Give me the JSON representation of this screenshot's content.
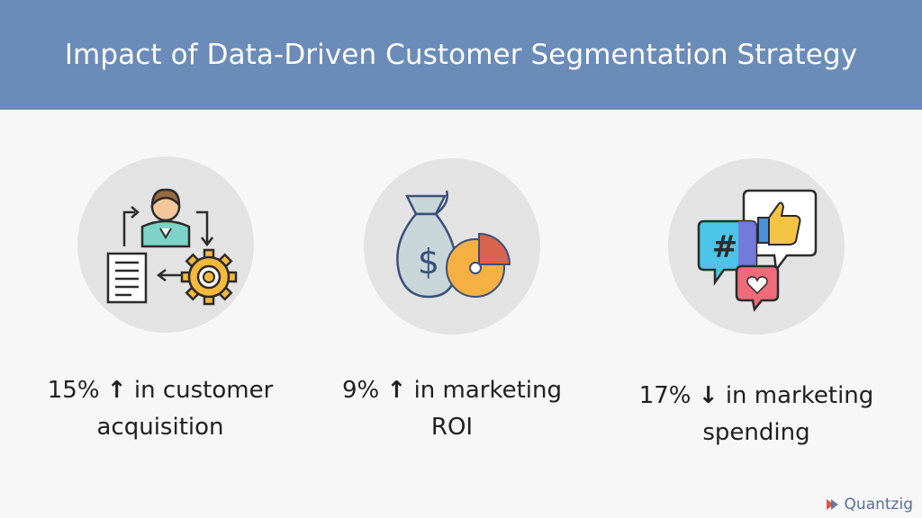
{
  "header": {
    "title": "Impact of Data-Driven Customer Segmentation Strategy"
  },
  "colors": {
    "header_bg": "#6b8cb9",
    "circle_bg": "#e3e3e3",
    "text": "#1f1f1f"
  },
  "stats": [
    {
      "icon": "customer-process-icon",
      "value": "15%",
      "arrow": "↑",
      "line1": "in customer",
      "line2": "acquisition"
    },
    {
      "icon": "money-pie-chart-icon",
      "value": "9%",
      "arrow": "↑",
      "line1": "in marketing",
      "line2": "ROI"
    },
    {
      "icon": "social-media-icon",
      "value": "17%",
      "arrow": "↓",
      "line1": "in marketing",
      "line2": "spending"
    }
  ],
  "brand": {
    "name": "Quantzig"
  }
}
